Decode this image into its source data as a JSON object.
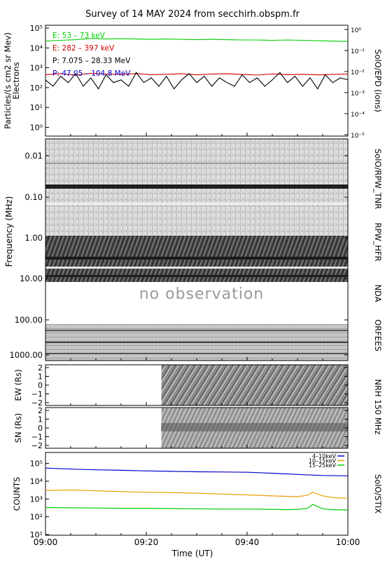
{
  "page": {
    "title": "Survey of 14 MAY 2024 from secchirh.obspm.fr",
    "xlabel": "Time (UT)",
    "xticks": [
      "09:00",
      "09:20",
      "09:40",
      "10:00"
    ],
    "no_observation": "no observation",
    "colors": {
      "green": "#00cc00",
      "red": "#cc0000",
      "black": "#000000",
      "blue": "#0000cc",
      "orange": "#e8a000"
    }
  },
  "chart_data": [
    {
      "type": "line",
      "panel": "epd",
      "ylabel_left": [
        "Particles/(s cm2 sr Mev)",
        "Electrons"
      ],
      "ylabel_right": "SolO/EPD (ions)",
      "y_scale": "log",
      "ylim": [
        0.5,
        100000
      ],
      "yticks_left": [
        "10⁰",
        "10¹",
        "10²",
        "10³",
        "10⁴",
        "10⁵"
      ],
      "ylim_right": [
        1e-05,
        1
      ],
      "yticks_right": [
        "10⁻⁵",
        "10⁻⁴",
        "10⁻³",
        "10⁻²",
        "10⁻¹",
        "10⁰"
      ],
      "legend": [
        "E: 53 – 73 keV",
        "E: 282 – 397 keV",
        "P: 7.075 – 28.33 MeV",
        "P: 47.05 – 104.8 MeV"
      ],
      "series": [
        {
          "name": "E: 53 – 73 keV",
          "color": "#00cc00",
          "axis": "left",
          "x": [
            0,
            3,
            6,
            9,
            12,
            15,
            18,
            21,
            24,
            27,
            30,
            33,
            36,
            39,
            42,
            45,
            48,
            51,
            54,
            57,
            60
          ],
          "y": [
            22000,
            24000,
            26000,
            30000,
            28000,
            29000,
            28000,
            27000,
            28000,
            27000,
            26000,
            27000,
            26000,
            25000,
            25000,
            24000,
            25000,
            24000,
            23000,
            22000,
            21000
          ]
        },
        {
          "name": "E: 282 – 397 keV",
          "color": "#cc0000",
          "axis": "left",
          "x": [
            0,
            3,
            6,
            9,
            12,
            15,
            18,
            21,
            24,
            27,
            30,
            33,
            36,
            39,
            42,
            45,
            48,
            51,
            54,
            57,
            60
          ],
          "y": [
            450,
            500,
            430,
            520,
            480,
            460,
            510,
            450,
            470,
            500,
            440,
            480,
            500,
            460,
            430,
            490,
            450,
            470,
            440,
            460,
            480
          ]
        },
        {
          "name": "P: 7.075 – 28.33 MeV",
          "color": "#000000",
          "axis": "right",
          "x": [
            0,
            1.5,
            3,
            4.5,
            6,
            7.5,
            9,
            10.5,
            12,
            13.5,
            15,
            16.5,
            18,
            19.5,
            21,
            22.5,
            24,
            25.5,
            27,
            28.5,
            30,
            31.5,
            33,
            34.5,
            36,
            37.5,
            39,
            40.5,
            42,
            43.5,
            45,
            46.5,
            48,
            49.5,
            51,
            52.5,
            54,
            55.5,
            57,
            58.5,
            60
          ],
          "y": [
            0.004,
            0.002,
            0.006,
            0.003,
            0.008,
            0.002,
            0.005,
            0.0015,
            0.007,
            0.003,
            0.004,
            0.002,
            0.009,
            0.003,
            0.005,
            0.002,
            0.006,
            0.0015,
            0.004,
            0.008,
            0.003,
            0.006,
            0.002,
            0.005,
            0.003,
            0.002,
            0.007,
            0.003,
            0.005,
            0.002,
            0.004,
            0.009,
            0.003,
            0.006,
            0.002,
            0.005,
            0.0015,
            0.007,
            0.003,
            0.005,
            0.004
          ]
        },
        {
          "name": "P: 47.05 – 104.8 MeV",
          "color": "#0000cc",
          "axis": "right",
          "x": [],
          "y": []
        }
      ]
    },
    {
      "type": "heatmap",
      "panel": "radio",
      "ylabel": "Frequency (MHz)",
      "y_scale": "log",
      "yticks": [
        "0.01",
        "0.10",
        "1.00",
        "10.00",
        "100.00",
        "1000.00"
      ],
      "instruments": [
        "SolO/RPW_TNR",
        "RPW_HFR",
        "NDA",
        "ORFEES"
      ]
    },
    {
      "type": "heatmap",
      "panel": "nrh-ew",
      "ylabel": "EW (Rs)",
      "yticks": [
        "2",
        "1",
        "0",
        "−1",
        "−2"
      ],
      "data_start": "09:23"
    },
    {
      "type": "heatmap",
      "panel": "nrh-sn",
      "ylabel": "SN (Rs)",
      "yticks": [
        "2",
        "1",
        "0",
        "−1",
        "−2"
      ],
      "data_start": "09:23",
      "instrument": "NRH 150 MHz"
    },
    {
      "type": "line",
      "panel": "stix",
      "ylabel": "COUNTS",
      "ylabel_right": "SolO/STIX",
      "y_scale": "log",
      "ylim": [
        10,
        200000
      ],
      "yticks": [
        "10¹",
        "10²",
        "10³",
        "10⁴",
        "10⁵"
      ],
      "series": [
        {
          "name": "4–10keV",
          "color": "#0000cc",
          "x": [
            0,
            5,
            10,
            15,
            20,
            25,
            30,
            35,
            40,
            45,
            50,
            55,
            60
          ],
          "y": [
            55000,
            48000,
            44000,
            41000,
            38000,
            36000,
            34000,
            33000,
            32000,
            28000,
            24000,
            21000,
            20000
          ]
        },
        {
          "name": "10–15keV",
          "color": "#e8a000",
          "x": [
            0,
            5,
            10,
            15,
            20,
            25,
            30,
            35,
            40,
            45,
            48,
            50,
            52,
            53,
            55,
            57,
            60
          ],
          "y": [
            3000,
            3200,
            2900,
            2600,
            2400,
            2300,
            2100,
            1900,
            1700,
            1500,
            1400,
            1350,
            1600,
            2400,
            1500,
            1200,
            1100
          ]
        },
        {
          "name": "15–25keV",
          "color": "#00cc00",
          "x": [
            0,
            5,
            10,
            15,
            20,
            25,
            30,
            35,
            40,
            45,
            48,
            50,
            52,
            53,
            55,
            57,
            60
          ],
          "y": [
            330,
            320,
            310,
            300,
            300,
            290,
            280,
            270,
            270,
            260,
            250,
            260,
            300,
            500,
            280,
            250,
            240
          ]
        }
      ]
    }
  ]
}
